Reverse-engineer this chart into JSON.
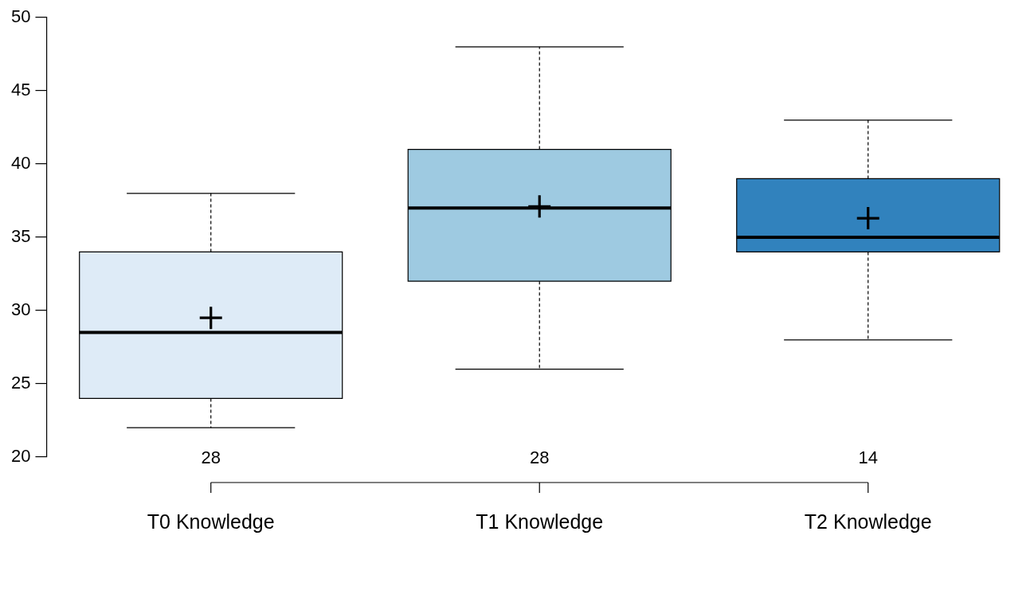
{
  "chart_data": {
    "type": "box",
    "categories": [
      "T0 Knowledge",
      "T1 Knowledge",
      "T2 Knowledge"
    ],
    "colors": [
      "#deebf7",
      "#9ecae1",
      "#3182bd"
    ],
    "boxes": [
      {
        "low": 22,
        "q1": 24,
        "median": 28.5,
        "q3": 34,
        "high": 38,
        "mean": 29.5
      },
      {
        "low": 26,
        "q1": 32,
        "median": 37,
        "q3": 41,
        "high": 48,
        "mean": 37.1
      },
      {
        "low": 28,
        "q1": 34,
        "median": 35,
        "q3": 39,
        "high": 43,
        "mean": 36.3
      }
    ],
    "ylim": [
      20,
      50
    ],
    "yticks": [
      20,
      25,
      30,
      35,
      40,
      45,
      50
    ],
    "grid": false,
    "legend": false,
    "marker": "cross",
    "annotations": [
      "28",
      "28",
      "14"
    ]
  }
}
